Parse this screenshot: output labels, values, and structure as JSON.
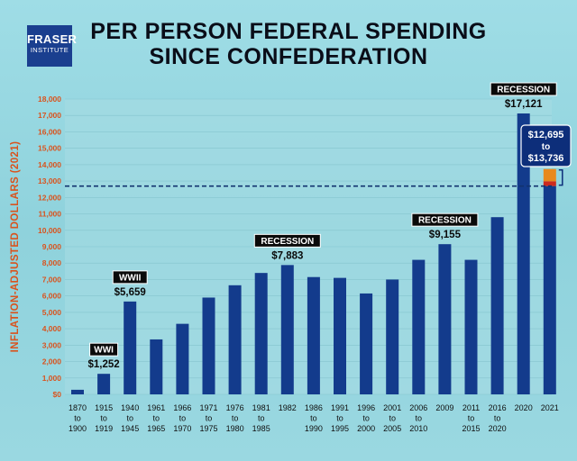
{
  "logo": {
    "line1": "FRASER",
    "line2": "INSTITUTE"
  },
  "title": {
    "line1": "PER PERSON FEDERAL SPENDING",
    "line2": "SINCE CONFEDERATION"
  },
  "colors": {
    "bar": "#133b8c",
    "plot_bg": "#a7dce3",
    "axis_label": "#d9531e",
    "dashed_line": "#12326e",
    "range_orange": "#e8891d",
    "range_red": "#cc2a1f",
    "callout_bg": "#0d2e7a",
    "tag_bg": "#0a0a0a"
  },
  "chart_data": {
    "type": "bar",
    "title": "PER PERSON FEDERAL SPENDING SINCE CONFEDERATION",
    "ylabel": "INFLATION-ADJUSTED DOLLARS (2021)",
    "xlabel": "",
    "ylim": [
      0,
      18000
    ],
    "yticks": [
      0,
      1000,
      2000,
      3000,
      4000,
      5000,
      6000,
      7000,
      8000,
      9000,
      10000,
      11000,
      12000,
      13000,
      14000,
      15000,
      16000,
      17000,
      18000
    ],
    "ytick_labels": [
      "$0",
      "1,000",
      "2,000",
      "3,000",
      "4,000",
      "5,000",
      "6,000",
      "7,000",
      "8,000",
      "9,000",
      "10,000",
      "11,000",
      "12,000",
      "13,000",
      "14,000",
      "15,000",
      "16,000",
      "17,000",
      "18,000"
    ],
    "categories": [
      [
        "1870",
        "to",
        "1900"
      ],
      [
        "1915",
        "to",
        "1919"
      ],
      [
        "1940",
        "to",
        "1945"
      ],
      [
        "1961",
        "to",
        "1965"
      ],
      [
        "1966",
        "to",
        "1970"
      ],
      [
        "1971",
        "to",
        "1975"
      ],
      [
        "1976",
        "to",
        "1980"
      ],
      [
        "1981",
        "to",
        "1985"
      ],
      [
        "1982"
      ],
      [
        "1986",
        "to",
        "1990"
      ],
      [
        "1991",
        "to",
        "1995"
      ],
      [
        "1996",
        "to",
        "2000"
      ],
      [
        "2001",
        "to",
        "2005"
      ],
      [
        "2006",
        "to",
        "2010"
      ],
      [
        "2009"
      ],
      [
        "2011",
        "to",
        "2015"
      ],
      [
        "2016",
        "to",
        "2020"
      ],
      [
        "2020"
      ],
      [
        "2021"
      ]
    ],
    "values": [
      280,
      1252,
      5659,
      3350,
      4300,
      5900,
      6650,
      7400,
      7883,
      7150,
      7100,
      6150,
      7000,
      8200,
      9155,
      8200,
      10800,
      17121,
      12695
    ],
    "range_2021": {
      "low": 12695,
      "high": 13736,
      "label_value_low": "$12,695",
      "label_to": "to",
      "label_value_high": "$13,736"
    },
    "reference_line": 12695,
    "annotations": [
      {
        "index": 1,
        "tag": "WWI",
        "value_label": "$1,252"
      },
      {
        "index": 2,
        "tag": "WWII",
        "value_label": "$5,659"
      },
      {
        "index": 8,
        "tag": "RECESSION",
        "value_label": "$7,883"
      },
      {
        "index": 14,
        "tag": "RECESSION",
        "value_label": "$9,155"
      },
      {
        "index": 17,
        "tag": "RECESSION",
        "value_label": "$17,121"
      }
    ]
  }
}
